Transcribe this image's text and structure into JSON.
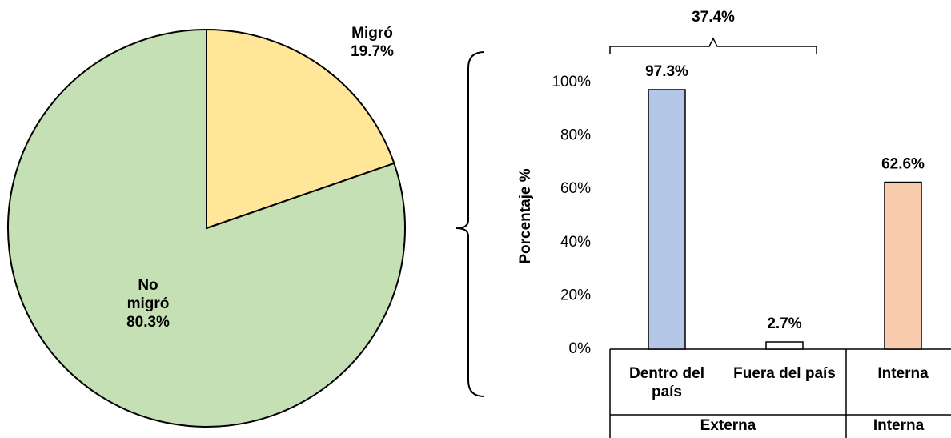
{
  "chart_data": [
    {
      "type": "pie",
      "categories": [
        "Migró",
        "No migró"
      ],
      "values": [
        19.7,
        80.3
      ],
      "value_labels": [
        "19.7%",
        "80.3%"
      ],
      "colors": [
        "#ffe699",
        "#c5e0b4"
      ]
    },
    {
      "type": "bar",
      "ylabel": "Porcentaje %",
      "categories": [
        "Dentro del país",
        "Fuera del país",
        "Interna"
      ],
      "values": [
        97.3,
        2.7,
        62.6
      ],
      "value_labels": [
        "97.3%",
        "2.7%",
        "62.6%"
      ],
      "colors": [
        "#b4c7e7",
        "#ffffff",
        "#f8cbad"
      ],
      "groups": [
        {
          "name": "Externa",
          "size": 2
        },
        {
          "name": "Interna",
          "size": 1
        }
      ],
      "annotation": "37.4%",
      "ylim": [
        0,
        100
      ],
      "yticks": [
        {
          "value": 0,
          "label": "0%"
        },
        {
          "value": 20,
          "label": "20%"
        },
        {
          "value": 40,
          "label": "40%"
        },
        {
          "value": 60,
          "label": "60%"
        },
        {
          "value": 80,
          "label": "80%"
        },
        {
          "value": 100,
          "label": "100%"
        }
      ]
    }
  ]
}
